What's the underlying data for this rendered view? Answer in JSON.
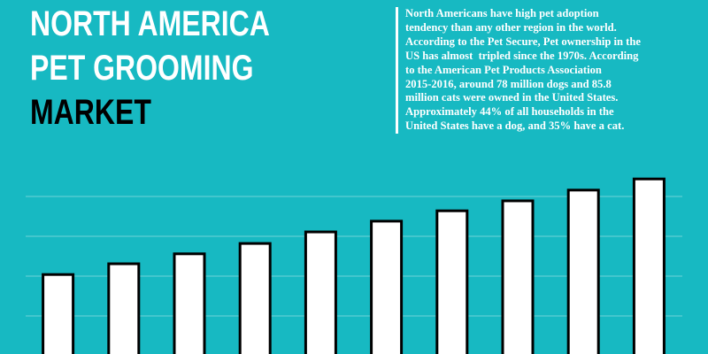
{
  "header": {
    "title_lines": [
      "NORTH AMERICA",
      "PET GROOMING",
      "MARKET"
    ],
    "paragraph_lines": [
      "North Americans have high pet adoption",
      "tendency than any other region in the world.",
      "According to the Pet Secure, Pet ownership in the",
      "US has almost  tripled since the 1970s. According",
      "to the American Pet Products Association",
      "2015-2016, around 78 million dogs and 85.8",
      "million cats were owned in the United States.",
      "Approximately 44% of all households in the",
      "United States have a dog, and 35% have a cat."
    ]
  },
  "chart_data": {
    "type": "bar",
    "categories": [
      null,
      null,
      null,
      null,
      null,
      null,
      null,
      null,
      null,
      null
    ],
    "values": [
      2.04,
      2.31,
      2.56,
      2.82,
      3.11,
      3.38,
      3.64,
      3.89,
      4.16,
      4.44
    ],
    "color": "#ffffff",
    "ylim": [
      0,
      4.5
    ],
    "yticks": [
      1,
      2,
      3,
      4
    ],
    "grid": true
  }
}
